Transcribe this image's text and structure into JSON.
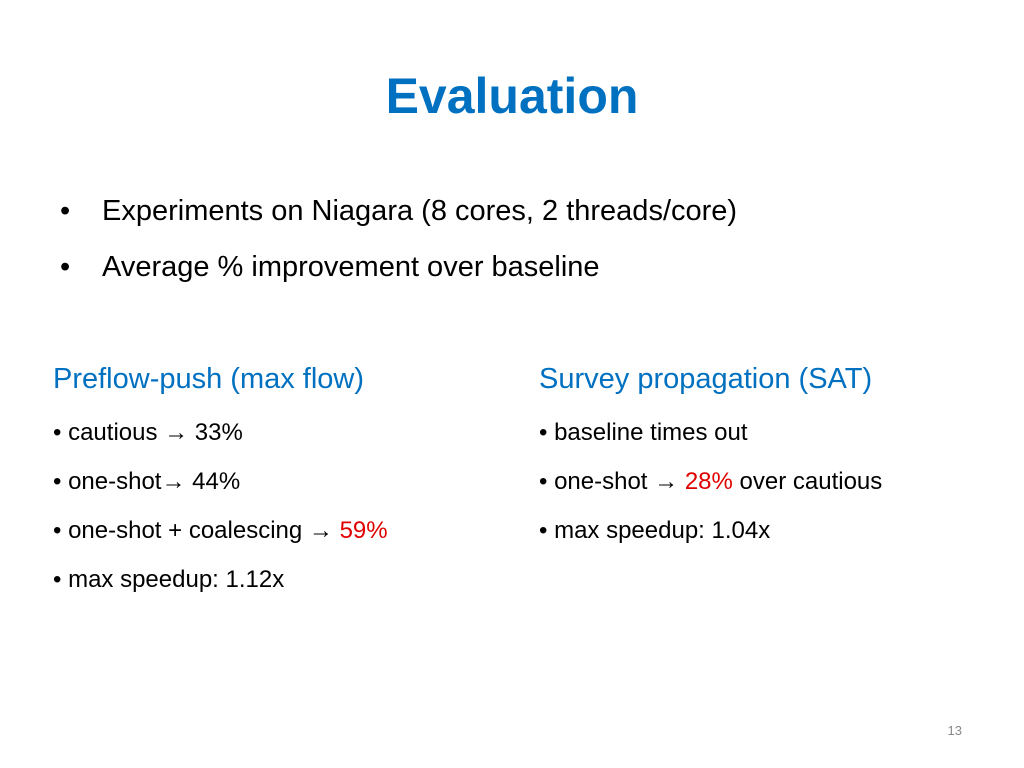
{
  "slide": {
    "title": "Evaluation",
    "bullets": [
      "Experiments on Niagara (8 cores, 2 threads/core)",
      "Average % improvement over baseline"
    ],
    "bullet_symbol": "•",
    "left_column": {
      "heading": "Preflow-push (max flow)",
      "items": [
        {
          "text": "cautious → 33%",
          "highlight": ""
        },
        {
          "text": "one-shot→ 44%",
          "highlight": ""
        },
        {
          "text": "one-shot + coalescing → ",
          "highlight": "59%"
        },
        {
          "text": "max speedup: 1.12x",
          "highlight": ""
        }
      ]
    },
    "right_column": {
      "heading": "Survey propagation (SAT)",
      "items": [
        {
          "text": "baseline times out",
          "highlight": "",
          "suffix": ""
        },
        {
          "text": "one-shot → ",
          "highlight": "28%",
          "suffix": " over cautious"
        },
        {
          "text": "max speedup: 1.04x",
          "highlight": "",
          "suffix": ""
        }
      ]
    },
    "page_number": "13",
    "colors": {
      "title": "#0070c0",
      "heading": "#0070c0",
      "highlight": "#e00000",
      "text": "#000000"
    }
  }
}
